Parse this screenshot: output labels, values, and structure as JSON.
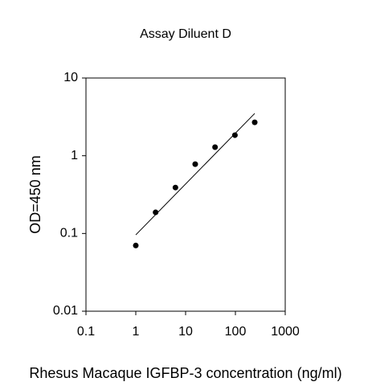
{
  "chart_data": {
    "type": "scatter",
    "title": "Assay Diluent D",
    "x_label": "Rhesus Macaque IGFBP-3 concentration (ng/ml)",
    "y_label": "OD=450 nm",
    "xscale": "log",
    "yscale": "log",
    "xlim": [
      0.1,
      1000
    ],
    "ylim": [
      0.01,
      10
    ],
    "xticks": [
      0.1,
      1,
      10,
      100,
      1000
    ],
    "yticks": [
      0.01,
      0.1,
      1,
      10
    ],
    "series": [
      {
        "mode": "markers",
        "color": "#000000",
        "x": [
          1,
          2.5,
          6.25,
          15.6,
          39,
          97.7,
          244
        ],
        "values": [
          0.07,
          0.187,
          0.39,
          0.78,
          1.29,
          1.84,
          2.69
        ]
      },
      {
        "mode": "line",
        "color": "#000000",
        "x": [
          1,
          244
        ],
        "values": [
          0.096,
          3.5
        ]
      }
    ]
  }
}
